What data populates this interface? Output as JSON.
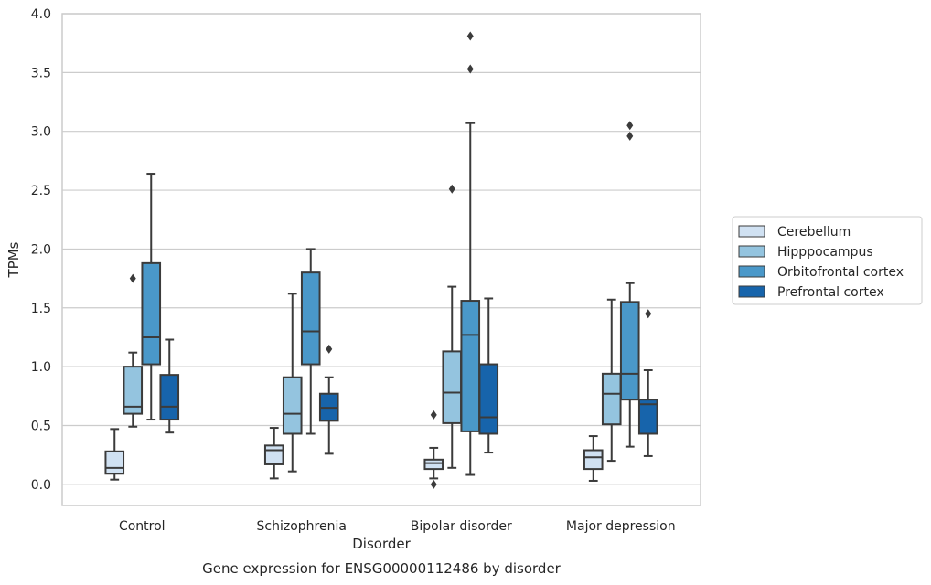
{
  "chart_data": {
    "type": "box",
    "title": "",
    "caption": "Gene expression for ENSG00000112486 by disorder",
    "xlabel": "Disorder",
    "ylabel": "TPMs",
    "ylim": [
      -0.18,
      4.0
    ],
    "yticks": [
      0.0,
      0.5,
      1.0,
      1.5,
      2.0,
      2.5,
      3.0,
      3.5,
      4.0
    ],
    "ytick_labels": [
      "0.0",
      "0.5",
      "1.0",
      "1.5",
      "2.0",
      "2.5",
      "3.0",
      "3.5",
      "4.0"
    ],
    "grid": "horizontal",
    "legend_position": "right",
    "categories": [
      "Control",
      "Schizophrenia",
      "Bipolar disorder",
      "Major depression"
    ],
    "series": [
      {
        "name": "Cerebellum",
        "color": "#d0e1f2",
        "boxes": [
          {
            "whisker_low": 0.04,
            "q1": 0.09,
            "median": 0.14,
            "q3": 0.28,
            "whisker_high": 0.47,
            "outliers": []
          },
          {
            "whisker_low": 0.05,
            "q1": 0.17,
            "median": 0.29,
            "q3": 0.33,
            "whisker_high": 0.48,
            "outliers": []
          },
          {
            "whisker_low": 0.05,
            "q1": 0.13,
            "median": 0.18,
            "q3": 0.21,
            "whisker_high": 0.31,
            "outliers": [
              0.59,
              0.0
            ]
          },
          {
            "whisker_low": 0.03,
            "q1": 0.13,
            "median": 0.23,
            "q3": 0.29,
            "whisker_high": 0.41,
            "outliers": []
          }
        ]
      },
      {
        "name": "Hipppocampus",
        "color": "#94c4df",
        "boxes": [
          {
            "whisker_low": 0.49,
            "q1": 0.6,
            "median": 0.66,
            "q3": 1.0,
            "whisker_high": 1.12,
            "outliers": [
              1.75
            ]
          },
          {
            "whisker_low": 0.11,
            "q1": 0.43,
            "median": 0.6,
            "q3": 0.91,
            "whisker_high": 1.62,
            "outliers": []
          },
          {
            "whisker_low": 0.14,
            "q1": 0.52,
            "median": 0.78,
            "q3": 1.13,
            "whisker_high": 1.68,
            "outliers": [
              2.51
            ]
          },
          {
            "whisker_low": 0.2,
            "q1": 0.51,
            "median": 0.77,
            "q3": 0.94,
            "whisker_high": 1.57,
            "outliers": []
          }
        ]
      },
      {
        "name": "Orbitofrontal cortex",
        "color": "#4a98c9",
        "boxes": [
          {
            "whisker_low": 0.55,
            "q1": 1.02,
            "median": 1.25,
            "q3": 1.88,
            "whisker_high": 2.64,
            "outliers": []
          },
          {
            "whisker_low": 0.43,
            "q1": 1.02,
            "median": 1.3,
            "q3": 1.8,
            "whisker_high": 2.0,
            "outliers": []
          },
          {
            "whisker_low": 0.08,
            "q1": 0.45,
            "median": 1.27,
            "q3": 1.56,
            "whisker_high": 3.07,
            "outliers": [
              3.53,
              3.81
            ]
          },
          {
            "whisker_low": 0.32,
            "q1": 0.72,
            "median": 0.94,
            "q3": 1.55,
            "whisker_high": 1.71,
            "outliers": [
              2.96,
              3.05
            ]
          }
        ]
      },
      {
        "name": "Prefrontal cortex",
        "color": "#1764ab",
        "boxes": [
          {
            "whisker_low": 0.44,
            "q1": 0.55,
            "median": 0.66,
            "q3": 0.93,
            "whisker_high": 1.23,
            "outliers": []
          },
          {
            "whisker_low": 0.26,
            "q1": 0.54,
            "median": 0.65,
            "q3": 0.77,
            "whisker_high": 0.91,
            "outliers": [
              1.15
            ]
          },
          {
            "whisker_low": 0.27,
            "q1": 0.43,
            "median": 0.57,
            "q3": 1.02,
            "whisker_high": 1.58,
            "outliers": []
          },
          {
            "whisker_low": 0.24,
            "q1": 0.43,
            "median": 0.68,
            "q3": 0.72,
            "whisker_high": 0.97,
            "outliers": [
              1.45
            ]
          }
        ]
      }
    ]
  }
}
